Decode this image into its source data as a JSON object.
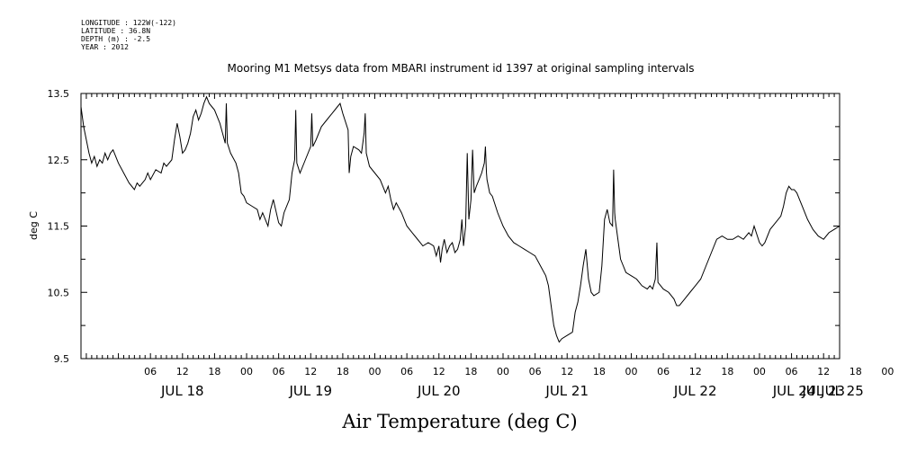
{
  "header": {
    "meta_lines": [
      "LONGITUDE : 122W(-122)",
      "LATITUDE : 36.8N",
      "DEPTH (m) : -2.5",
      "YEAR : 2012"
    ]
  },
  "chart_data": {
    "type": "line",
    "title": "Mooring M1 Metsys data from MBARI instrument id 1397 at original sampling intervals",
    "xlabel": "Air Temperature (deg C)",
    "ylabel": "deg C",
    "ylim": [
      9.5,
      13.5
    ],
    "yticks": [
      "9.5",
      "10.5",
      "11.5",
      "12.5",
      "13.5"
    ],
    "x_unit": "hours since JUL 18 00:00",
    "xlim": [
      -7,
      135
    ],
    "hour_tick_labels": [
      "06",
      "12",
      "18",
      "00",
      "06",
      "12",
      "18",
      "00",
      "06",
      "12",
      "18",
      "00",
      "06",
      "12",
      "18",
      "00",
      "06",
      "12",
      "18",
      "00",
      "06",
      "12",
      "18",
      "00",
      "06",
      "12",
      "18",
      "00",
      "06",
      "12",
      "18",
      "00",
      "06"
    ],
    "day_labels": [
      "JUL 18",
      "JUL 19",
      "JUL 20",
      "JUL 21",
      "JUL 22",
      "JUL 23",
      "JUL 24",
      "JUL 25"
    ],
    "grid": false,
    "series": [
      {
        "color": "#000000",
        "points": [
          [
            -7,
            13.3
          ],
          [
            -6.5,
            13.0
          ],
          [
            -6,
            12.8
          ],
          [
            -5.5,
            12.6
          ],
          [
            -5,
            12.45
          ],
          [
            -4.5,
            12.55
          ],
          [
            -4,
            12.4
          ],
          [
            -3.5,
            12.5
          ],
          [
            -3,
            12.45
          ],
          [
            -2.5,
            12.6
          ],
          [
            -2,
            12.5
          ],
          [
            -1.5,
            12.6
          ],
          [
            -1,
            12.65
          ],
          [
            -0.5,
            12.55
          ],
          [
            0,
            12.45
          ],
          [
            1,
            12.3
          ],
          [
            2,
            12.15
          ],
          [
            2.5,
            12.1
          ],
          [
            3,
            12.05
          ],
          [
            3.5,
            12.15
          ],
          [
            4,
            12.1
          ],
          [
            5,
            12.2
          ],
          [
            5.5,
            12.3
          ],
          [
            6,
            12.2
          ],
          [
            7,
            12.35
          ],
          [
            8,
            12.3
          ],
          [
            8.5,
            12.45
          ],
          [
            9,
            12.4
          ],
          [
            10,
            12.5
          ],
          [
            10.5,
            12.8
          ],
          [
            11,
            13.05
          ],
          [
            11.5,
            12.85
          ],
          [
            12,
            12.6
          ],
          [
            12.5,
            12.65
          ],
          [
            13,
            12.75
          ],
          [
            13.5,
            12.9
          ],
          [
            14,
            13.15
          ],
          [
            14.5,
            13.25
          ],
          [
            15,
            13.1
          ],
          [
            15.5,
            13.2
          ],
          [
            16,
            13.35
          ],
          [
            16.5,
            13.45
          ],
          [
            17,
            13.35
          ],
          [
            17.5,
            13.3
          ],
          [
            18,
            13.25
          ],
          [
            18.5,
            13.15
          ],
          [
            19,
            13.05
          ],
          [
            19.5,
            12.9
          ],
          [
            20,
            12.75
          ],
          [
            20.2,
            13.35
          ],
          [
            20.4,
            12.75
          ],
          [
            21,
            12.6
          ],
          [
            22,
            12.45
          ],
          [
            22.5,
            12.3
          ],
          [
            23,
            12.0
          ],
          [
            23.5,
            11.95
          ],
          [
            24,
            11.85
          ],
          [
            25,
            11.8
          ],
          [
            26,
            11.75
          ],
          [
            26.5,
            11.6
          ],
          [
            27,
            11.7
          ],
          [
            27.5,
            11.6
          ],
          [
            28,
            11.5
          ],
          [
            28.5,
            11.75
          ],
          [
            29,
            11.9
          ],
          [
            30,
            11.55
          ],
          [
            30.5,
            11.5
          ],
          [
            31,
            11.7
          ],
          [
            32,
            11.9
          ],
          [
            32.5,
            12.3
          ],
          [
            33,
            12.5
          ],
          [
            33.2,
            13.25
          ],
          [
            33.4,
            12.45
          ],
          [
            34,
            12.3
          ],
          [
            35,
            12.5
          ],
          [
            36,
            12.7
          ],
          [
            36.2,
            13.2
          ],
          [
            36.4,
            12.7
          ],
          [
            37,
            12.8
          ],
          [
            38,
            13.0
          ],
          [
            39,
            13.1
          ],
          [
            40,
            13.2
          ],
          [
            41,
            13.3
          ],
          [
            41.5,
            13.35
          ],
          [
            42,
            13.2
          ],
          [
            43,
            12.95
          ],
          [
            43.2,
            12.3
          ],
          [
            43.5,
            12.55
          ],
          [
            44,
            12.7
          ],
          [
            45,
            12.65
          ],
          [
            45.5,
            12.6
          ],
          [
            46,
            12.9
          ],
          [
            46.2,
            13.2
          ],
          [
            46.4,
            12.6
          ],
          [
            47,
            12.4
          ],
          [
            48,
            12.3
          ],
          [
            49,
            12.2
          ],
          [
            50,
            12.0
          ],
          [
            50.5,
            12.1
          ],
          [
            51,
            11.9
          ],
          [
            51.5,
            11.75
          ],
          [
            52,
            11.85
          ],
          [
            53,
            11.7
          ],
          [
            54,
            11.5
          ],
          [
            55,
            11.4
          ],
          [
            56,
            11.3
          ],
          [
            57,
            11.2
          ],
          [
            58,
            11.25
          ],
          [
            59,
            11.2
          ],
          [
            59.5,
            11.05
          ],
          [
            60,
            11.2
          ],
          [
            60.3,
            10.95
          ],
          [
            60.6,
            11.15
          ],
          [
            61,
            11.3
          ],
          [
            61.5,
            11.1
          ],
          [
            62,
            11.2
          ],
          [
            62.5,
            11.25
          ],
          [
            63,
            11.1
          ],
          [
            63.5,
            11.15
          ],
          [
            64,
            11.3
          ],
          [
            64.3,
            11.6
          ],
          [
            64.6,
            11.2
          ],
          [
            65,
            11.5
          ],
          [
            65.3,
            12.6
          ],
          [
            65.6,
            11.6
          ],
          [
            66,
            11.9
          ],
          [
            66.3,
            12.65
          ],
          [
            66.6,
            12.0
          ],
          [
            67,
            12.1
          ],
          [
            67.5,
            12.2
          ],
          [
            68,
            12.3
          ],
          [
            68.5,
            12.45
          ],
          [
            68.7,
            12.7
          ],
          [
            68.9,
            12.3
          ],
          [
            69,
            12.2
          ],
          [
            69.5,
            12.0
          ],
          [
            70,
            11.95
          ],
          [
            71,
            11.7
          ],
          [
            72,
            11.5
          ],
          [
            73,
            11.35
          ],
          [
            74,
            11.25
          ],
          [
            75,
            11.2
          ],
          [
            76,
            11.15
          ],
          [
            77,
            11.1
          ],
          [
            78,
            11.05
          ],
          [
            79,
            10.9
          ],
          [
            80,
            10.75
          ],
          [
            80.5,
            10.6
          ],
          [
            81,
            10.3
          ],
          [
            81.5,
            10.0
          ],
          [
            82,
            9.85
          ],
          [
            82.5,
            9.75
          ],
          [
            83,
            9.8
          ],
          [
            84,
            9.85
          ],
          [
            85,
            9.9
          ],
          [
            85.5,
            10.2
          ],
          [
            86,
            10.35
          ],
          [
            86.5,
            10.6
          ],
          [
            87,
            10.9
          ],
          [
            87.5,
            11.15
          ],
          [
            88,
            10.7
          ],
          [
            88.5,
            10.5
          ],
          [
            89,
            10.45
          ],
          [
            90,
            10.5
          ],
          [
            90.5,
            10.9
          ],
          [
            91,
            11.6
          ],
          [
            91.5,
            11.75
          ],
          [
            92,
            11.55
          ],
          [
            92.5,
            11.5
          ],
          [
            92.7,
            12.35
          ],
          [
            92.9,
            11.7
          ],
          [
            93,
            11.6
          ],
          [
            93.5,
            11.3
          ],
          [
            94,
            11.0
          ],
          [
            94.5,
            10.9
          ],
          [
            95,
            10.8
          ],
          [
            96,
            10.75
          ],
          [
            97,
            10.7
          ],
          [
            98,
            10.6
          ],
          [
            99,
            10.55
          ],
          [
            99.5,
            10.6
          ],
          [
            100,
            10.55
          ],
          [
            100.5,
            10.7
          ],
          [
            100.8,
            11.25
          ],
          [
            101,
            10.65
          ],
          [
            102,
            10.55
          ],
          [
            103,
            10.5
          ],
          [
            104,
            10.4
          ],
          [
            104.5,
            10.3
          ],
          [
            105,
            10.3
          ],
          [
            106,
            10.4
          ],
          [
            107,
            10.5
          ],
          [
            108,
            10.6
          ],
          [
            109,
            10.7
          ],
          [
            110,
            10.9
          ],
          [
            111,
            11.1
          ],
          [
            112,
            11.3
          ],
          [
            113,
            11.35
          ],
          [
            114,
            11.3
          ],
          [
            115,
            11.3
          ],
          [
            116,
            11.35
          ],
          [
            117,
            11.3
          ],
          [
            118,
            11.4
          ],
          [
            118.5,
            11.35
          ],
          [
            119,
            11.5
          ],
          [
            120,
            11.25
          ],
          [
            120.5,
            11.2
          ],
          [
            121,
            11.25
          ],
          [
            122,
            11.45
          ],
          [
            123,
            11.55
          ],
          [
            124,
            11.65
          ],
          [
            124.5,
            11.8
          ],
          [
            125,
            12.0
          ],
          [
            125.5,
            12.1
          ],
          [
            126,
            12.05
          ],
          [
            126.5,
            12.05
          ],
          [
            127,
            12.0
          ],
          [
            128,
            11.8
          ],
          [
            129,
            11.6
          ],
          [
            130,
            11.45
          ],
          [
            131,
            11.35
          ],
          [
            132,
            11.3
          ],
          [
            133,
            11.4
          ],
          [
            134,
            11.45
          ],
          [
            135,
            11.5
          ]
        ]
      }
    ]
  }
}
